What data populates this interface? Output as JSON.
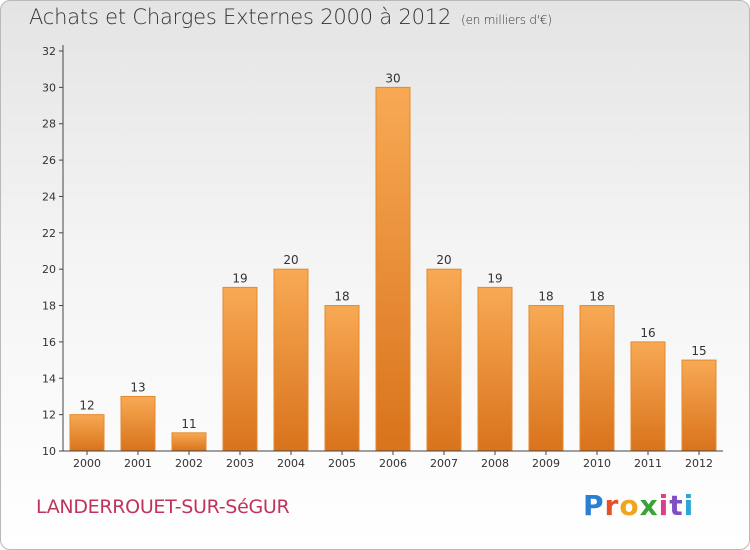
{
  "header": {
    "title": "Achats et Charges Externes 2000 à 2012",
    "unit": "(en milliers d'€)"
  },
  "footer": {
    "commune": "LANDERROUET-SUR-SéGUR",
    "logo_letters": [
      "P",
      "r",
      "o",
      "x",
      "i",
      "t",
      "i"
    ],
    "logo_colors": [
      "#2a7fd0",
      "#e8502a",
      "#f2a41c",
      "#3aa335",
      "#e03c8c",
      "#7d4fc2",
      "#2aa7d8"
    ]
  },
  "colors": {
    "bar_top": "#f8a954",
    "bar_bottom": "#d9731c",
    "bar_edge": "#e28a2e",
    "axis": "#444444",
    "grid": "#d8d8d8"
  },
  "chart_data": {
    "type": "bar",
    "title": "Achats et Charges Externes 2000 à 2012",
    "categories": [
      "2000",
      "2001",
      "2002",
      "2003",
      "2004",
      "2005",
      "2006",
      "2007",
      "2008",
      "2009",
      "2010",
      "2011",
      "2012"
    ],
    "values": [
      12,
      13,
      11,
      19,
      20,
      18,
      30,
      20,
      19,
      18,
      18,
      16,
      15
    ],
    "ylim": [
      10,
      32
    ],
    "yticks": [
      10,
      12,
      14,
      16,
      18,
      20,
      22,
      24,
      26,
      28,
      30,
      32
    ],
    "xlabel": "",
    "ylabel": "",
    "grid": false
  }
}
